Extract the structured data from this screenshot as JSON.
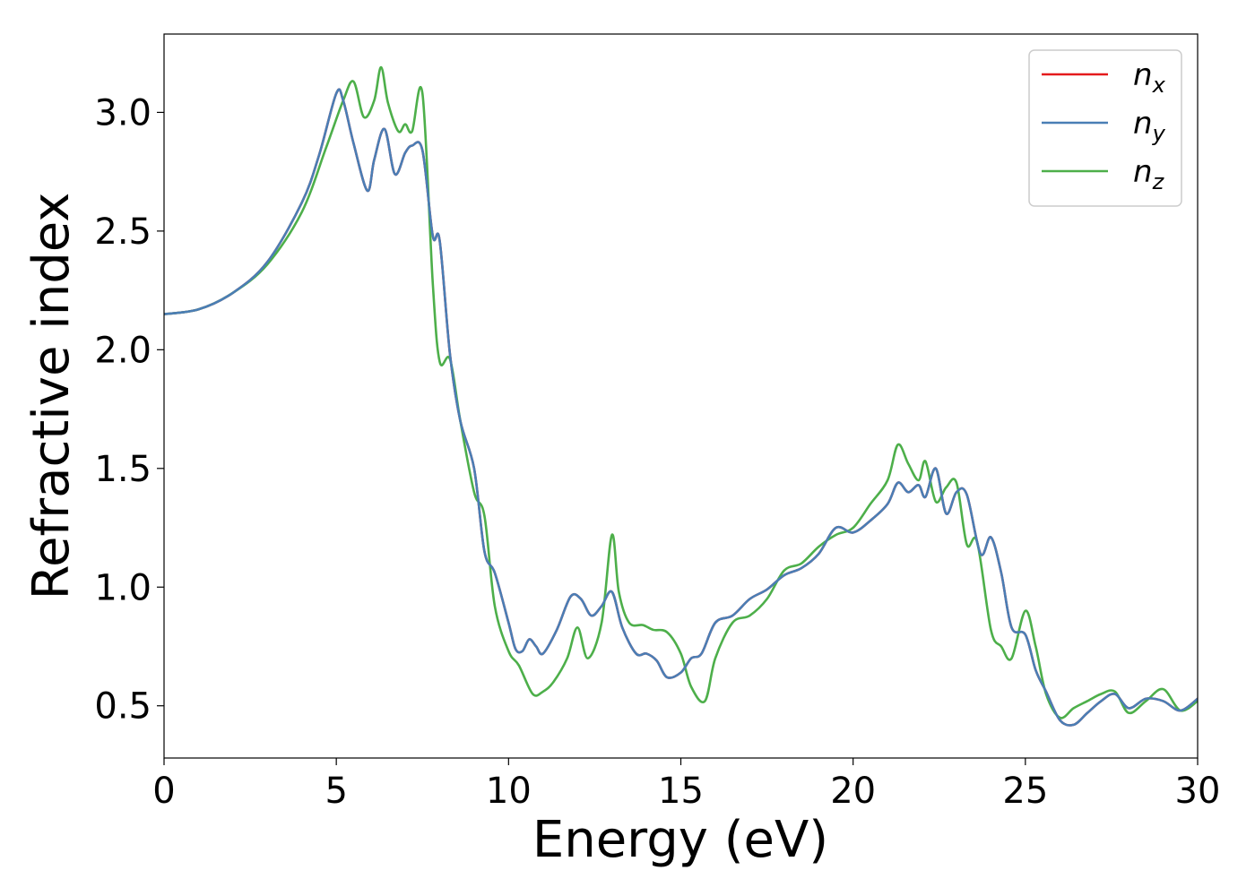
{
  "chart_data": {
    "type": "line",
    "xlabel": "Energy (eV)",
    "ylabel": "Refractive index",
    "xlim": [
      0,
      30
    ],
    "ylim": [
      0.28,
      3.33
    ],
    "x_ticks": [
      "0",
      "5",
      "10",
      "15",
      "20",
      "25",
      "30"
    ],
    "y_ticks": [
      "0.5",
      "1.0",
      "1.5",
      "2.0",
      "2.5",
      "3.0"
    ],
    "grid": false,
    "legend_position": "top-right",
    "series": [
      {
        "name": "n_x",
        "legend_base": "n",
        "legend_sub": "x",
        "color": "#e41a1c",
        "x": [
          0,
          1,
          2,
          3,
          4,
          4.5,
          5.0,
          5.2,
          5.5,
          5.9,
          6.1,
          6.4,
          6.7,
          7.0,
          7.2,
          7.5,
          7.8,
          8.0,
          8.3,
          8.6,
          9.0,
          9.3,
          9.6,
          10.0,
          10.2,
          10.4,
          10.6,
          10.8,
          11.0,
          11.4,
          11.8,
          12.1,
          12.4,
          12.7,
          13.0,
          13.3,
          13.7,
          14.0,
          14.3,
          14.6,
          15.0,
          15.3,
          15.6,
          16.0,
          16.5,
          17.0,
          17.5,
          18.0,
          18.5,
          19.0,
          19.5,
          20.0,
          20.5,
          21.0,
          21.3,
          21.6,
          21.9,
          22.1,
          22.4,
          22.7,
          23.0,
          23.3,
          23.7,
          24.0,
          24.3,
          24.6,
          25.0,
          25.3,
          25.6,
          26.0,
          26.4,
          26.8,
          27.2,
          27.6,
          28.0,
          28.5,
          29.0,
          29.5,
          30.0
        ],
        "y": [
          2.15,
          2.17,
          2.24,
          2.37,
          2.62,
          2.82,
          3.08,
          3.05,
          2.87,
          2.67,
          2.8,
          2.93,
          2.74,
          2.83,
          2.86,
          2.84,
          2.48,
          2.46,
          1.98,
          1.7,
          1.5,
          1.15,
          1.06,
          0.85,
          0.74,
          0.73,
          0.78,
          0.75,
          0.72,
          0.82,
          0.96,
          0.95,
          0.88,
          0.92,
          0.98,
          0.83,
          0.72,
          0.72,
          0.69,
          0.62,
          0.64,
          0.7,
          0.72,
          0.85,
          0.88,
          0.95,
          0.99,
          1.05,
          1.08,
          1.14,
          1.25,
          1.23,
          1.28,
          1.35,
          1.44,
          1.4,
          1.43,
          1.38,
          1.5,
          1.31,
          1.4,
          1.39,
          1.14,
          1.21,
          1.06,
          0.83,
          0.8,
          0.65,
          0.56,
          0.44,
          0.42,
          0.47,
          0.52,
          0.55,
          0.49,
          0.53,
          0.52,
          0.48,
          0.53
        ]
      },
      {
        "name": "n_y",
        "legend_base": "n",
        "legend_sub": "y",
        "color": "#4a7eb5",
        "x": [
          0,
          1,
          2,
          3,
          4,
          4.5,
          5.0,
          5.2,
          5.5,
          5.9,
          6.1,
          6.4,
          6.7,
          7.0,
          7.2,
          7.5,
          7.8,
          8.0,
          8.3,
          8.6,
          9.0,
          9.3,
          9.6,
          10.0,
          10.2,
          10.4,
          10.6,
          10.8,
          11.0,
          11.4,
          11.8,
          12.1,
          12.4,
          12.7,
          13.0,
          13.3,
          13.7,
          14.0,
          14.3,
          14.6,
          15.0,
          15.3,
          15.6,
          16.0,
          16.5,
          17.0,
          17.5,
          18.0,
          18.5,
          19.0,
          19.5,
          20.0,
          20.5,
          21.0,
          21.3,
          21.6,
          21.9,
          22.1,
          22.4,
          22.7,
          23.0,
          23.3,
          23.7,
          24.0,
          24.3,
          24.6,
          25.0,
          25.3,
          25.6,
          26.0,
          26.4,
          26.8,
          27.2,
          27.6,
          28.0,
          28.5,
          29.0,
          29.5,
          30.0
        ],
        "y": [
          2.15,
          2.17,
          2.24,
          2.37,
          2.62,
          2.82,
          3.08,
          3.05,
          2.87,
          2.67,
          2.8,
          2.93,
          2.74,
          2.83,
          2.86,
          2.84,
          2.48,
          2.46,
          1.98,
          1.7,
          1.5,
          1.15,
          1.06,
          0.85,
          0.74,
          0.73,
          0.78,
          0.75,
          0.72,
          0.82,
          0.96,
          0.95,
          0.88,
          0.92,
          0.98,
          0.83,
          0.72,
          0.72,
          0.69,
          0.62,
          0.64,
          0.7,
          0.72,
          0.85,
          0.88,
          0.95,
          0.99,
          1.05,
          1.08,
          1.14,
          1.25,
          1.23,
          1.28,
          1.35,
          1.44,
          1.4,
          1.43,
          1.38,
          1.5,
          1.31,
          1.4,
          1.39,
          1.14,
          1.21,
          1.06,
          0.83,
          0.8,
          0.65,
          0.56,
          0.44,
          0.42,
          0.47,
          0.52,
          0.55,
          0.49,
          0.53,
          0.52,
          0.48,
          0.53
        ]
      },
      {
        "name": "n_z",
        "legend_base": "n",
        "legend_sub": "z",
        "color": "#4daf4a",
        "x": [
          0,
          1,
          2,
          3,
          4,
          4.7,
          5.2,
          5.5,
          5.8,
          6.1,
          6.3,
          6.5,
          6.8,
          7.0,
          7.2,
          7.5,
          7.8,
          8.0,
          8.3,
          8.6,
          9.0,
          9.3,
          9.6,
          10.0,
          10.3,
          10.7,
          11.0,
          11.3,
          11.7,
          12.0,
          12.3,
          12.7,
          13.0,
          13.2,
          13.5,
          13.9,
          14.2,
          14.6,
          15.0,
          15.3,
          15.7,
          16.0,
          16.5,
          17.0,
          17.5,
          18.0,
          18.5,
          19.0,
          19.5,
          20.0,
          20.5,
          21.0,
          21.3,
          21.6,
          21.9,
          22.1,
          22.4,
          22.7,
          23.0,
          23.3,
          23.6,
          24.0,
          24.3,
          24.6,
          25.0,
          25.3,
          25.6,
          26.0,
          26.4,
          26.8,
          27.2,
          27.6,
          28.0,
          28.5,
          29.0,
          29.5,
          30.0
        ],
        "y": [
          2.15,
          2.17,
          2.24,
          2.36,
          2.58,
          2.85,
          3.05,
          3.13,
          2.98,
          3.05,
          3.19,
          3.04,
          2.92,
          2.95,
          2.92,
          3.08,
          2.28,
          1.95,
          1.96,
          1.7,
          1.4,
          1.3,
          0.92,
          0.73,
          0.67,
          0.55,
          0.56,
          0.6,
          0.7,
          0.83,
          0.7,
          0.85,
          1.22,
          0.98,
          0.85,
          0.84,
          0.82,
          0.81,
          0.72,
          0.58,
          0.52,
          0.7,
          0.85,
          0.88,
          0.95,
          1.07,
          1.1,
          1.17,
          1.22,
          1.25,
          1.35,
          1.45,
          1.6,
          1.52,
          1.45,
          1.53,
          1.36,
          1.42,
          1.44,
          1.18,
          1.19,
          0.82,
          0.75,
          0.7,
          0.9,
          0.75,
          0.55,
          0.45,
          0.49,
          0.52,
          0.55,
          0.56,
          0.47,
          0.52,
          0.57,
          0.48,
          0.52
        ]
      }
    ]
  }
}
